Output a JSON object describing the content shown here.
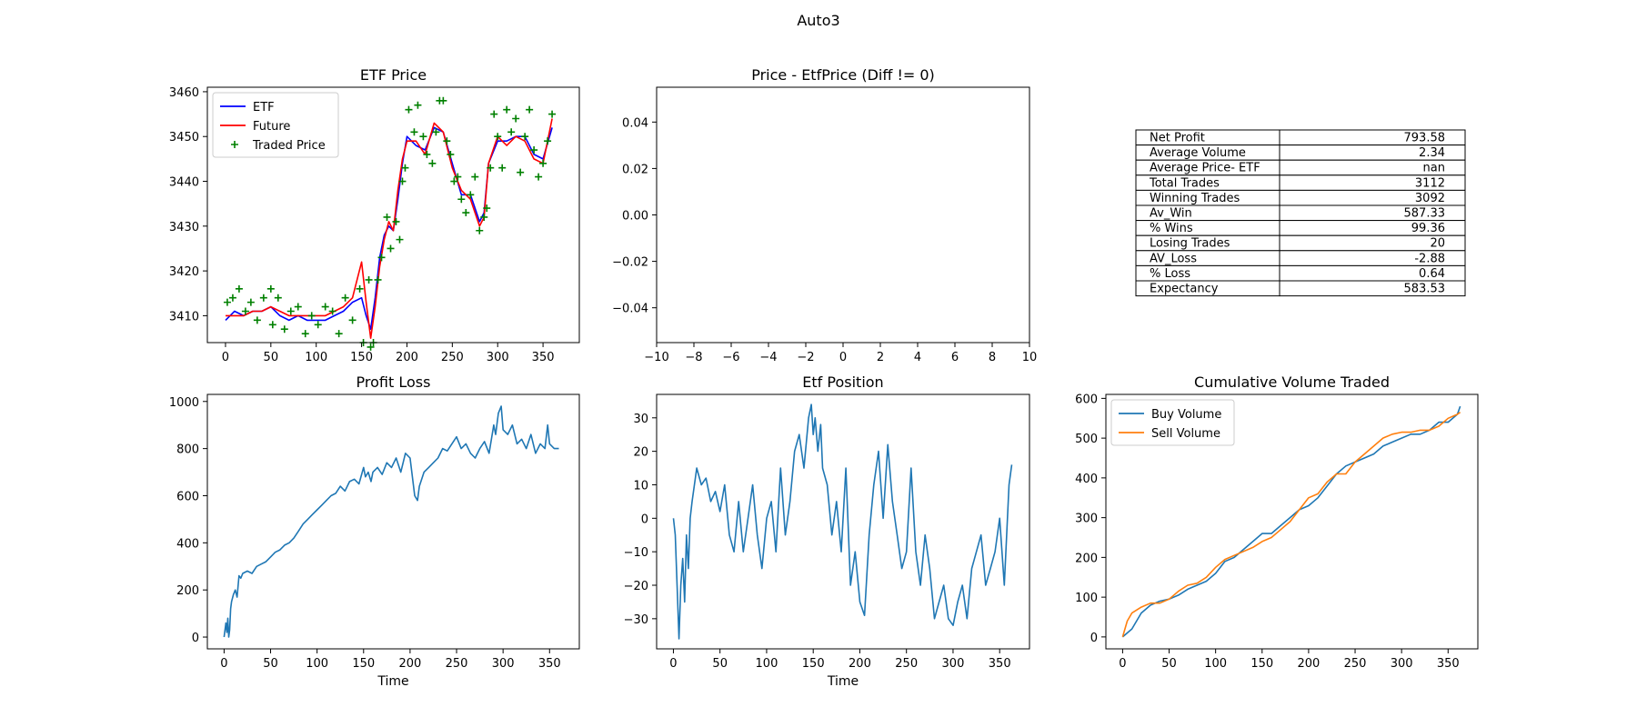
{
  "figure": {
    "suptitle": "Auto3"
  },
  "colors": {
    "etf": "#0000ff",
    "future": "#ff0000",
    "traded": "#008000",
    "buy": "#1f77b4",
    "sell": "#ff7f0e",
    "line": "#1f77b4"
  },
  "chart_data": [
    {
      "id": "etf_price",
      "type": "line",
      "title": "ETF Price",
      "xlabel": "",
      "ylabel": "",
      "xlim": [
        -20,
        390
      ],
      "ylim": [
        3404,
        3461
      ],
      "xticks": [
        0,
        50,
        100,
        150,
        200,
        250,
        300,
        350
      ],
      "yticks": [
        3410,
        3420,
        3430,
        3440,
        3450,
        3460
      ],
      "legend": "top-left",
      "series": [
        {
          "name": "ETF",
          "kind": "line",
          "color": "#0000ff",
          "x": [
            0,
            10,
            20,
            30,
            40,
            50,
            60,
            70,
            80,
            90,
            100,
            110,
            120,
            130,
            140,
            150,
            155,
            160,
            165,
            170,
            175,
            180,
            185,
            190,
            195,
            200,
            210,
            220,
            230,
            240,
            250,
            260,
            270,
            280,
            285,
            290,
            300,
            310,
            320,
            330,
            340,
            350,
            360
          ],
          "y": [
            3409,
            3411,
            3410,
            3411,
            3411,
            3412,
            3410,
            3409,
            3410,
            3409,
            3409,
            3409,
            3410,
            3411,
            3413,
            3414,
            3410,
            3407,
            3414,
            3423,
            3428,
            3430,
            3429,
            3436,
            3444,
            3450,
            3448,
            3447,
            3452,
            3451,
            3444,
            3437,
            3437,
            3431,
            3433,
            3444,
            3449,
            3449,
            3450,
            3450,
            3446,
            3445,
            3452
          ]
        },
        {
          "name": "Future",
          "kind": "line",
          "color": "#ff0000",
          "x": [
            0,
            10,
            20,
            30,
            40,
            50,
            60,
            70,
            80,
            90,
            100,
            110,
            120,
            130,
            140,
            150,
            155,
            160,
            165,
            170,
            175,
            180,
            185,
            190,
            195,
            200,
            210,
            220,
            230,
            240,
            250,
            260,
            270,
            280,
            285,
            290,
            300,
            310,
            320,
            330,
            340,
            350,
            360
          ],
          "y": [
            3410,
            3410,
            3410,
            3411,
            3411,
            3412,
            3411,
            3410,
            3410,
            3410,
            3410,
            3410,
            3411,
            3412,
            3414,
            3422,
            3413,
            3405,
            3412,
            3421,
            3427,
            3431,
            3429,
            3438,
            3445,
            3449,
            3449,
            3446,
            3453,
            3451,
            3443,
            3438,
            3436,
            3430,
            3432,
            3444,
            3450,
            3448,
            3450,
            3449,
            3445,
            3444,
            3454
          ]
        },
        {
          "name": "Traded Price",
          "kind": "scatter",
          "marker": "+",
          "color": "#008000",
          "x": [
            2,
            8,
            15,
            22,
            28,
            35,
            42,
            50,
            52,
            58,
            65,
            72,
            80,
            88,
            95,
            102,
            110,
            118,
            125,
            132,
            140,
            148,
            152,
            158,
            160,
            163,
            168,
            172,
            178,
            182,
            188,
            192,
            195,
            198,
            202,
            208,
            212,
            218,
            222,
            228,
            232,
            236,
            240,
            244,
            248,
            252,
            256,
            260,
            265,
            270,
            275,
            280,
            285,
            288,
            292,
            296,
            300,
            305,
            310,
            315,
            320,
            325,
            330,
            335,
            340,
            345,
            350,
            355,
            360
          ],
          "y": [
            3413,
            3414,
            3416,
            3411,
            3413,
            3409,
            3414,
            3416,
            3408,
            3414,
            3407,
            3411,
            3412,
            3406,
            3410,
            3408,
            3412,
            3411,
            3406,
            3414,
            3409,
            3416,
            3404,
            3418,
            3403,
            3404,
            3418,
            3423,
            3432,
            3425,
            3431,
            3427,
            3440,
            3443,
            3456,
            3451,
            3457,
            3450,
            3446,
            3444,
            3451,
            3458,
            3458,
            3449,
            3446,
            3440,
            3441,
            3436,
            3433,
            3437,
            3441,
            3429,
            3432,
            3434,
            3443,
            3455,
            3450,
            3443,
            3456,
            3451,
            3454,
            3442,
            3450,
            3456,
            3447,
            3441,
            3444,
            3449,
            3455
          ]
        }
      ]
    },
    {
      "id": "price_minus_etf",
      "type": "scatter",
      "title": "Price - EtfPrice (Diff != 0)",
      "xlabel": "",
      "ylabel": "",
      "xlim": [
        -10,
        10
      ],
      "ylim": [
        -0.055,
        0.055
      ],
      "xticks": [
        -10,
        -8,
        -6,
        -4,
        -2,
        0,
        2,
        4,
        6,
        8,
        10
      ],
      "yticks": [
        -0.04,
        -0.02,
        0.0,
        0.02,
        0.04
      ],
      "ytick_labels": [
        "−0.04",
        "−0.02",
        "0.00",
        "0.02",
        "0.04"
      ],
      "xtick_labels": [
        "−10",
        "−8",
        "−6",
        "−4",
        "−2",
        "0",
        "2",
        "4",
        "6",
        "8",
        "10"
      ],
      "series": []
    },
    {
      "id": "stats_table",
      "type": "table",
      "rows": [
        [
          "Net Profit",
          "793.58"
        ],
        [
          "Average Volume",
          "2.34"
        ],
        [
          "Average Price- ETF",
          "nan"
        ],
        [
          "Total Trades",
          "3112"
        ],
        [
          "Winning Trades",
          "3092"
        ],
        [
          "Av_Win",
          "587.33"
        ],
        [
          "% Wins",
          "99.36"
        ],
        [
          "Losing Trades",
          "20"
        ],
        [
          "AV_Loss",
          "-2.88"
        ],
        [
          "% Loss",
          "0.64"
        ],
        [
          "Expectancy",
          "583.53"
        ]
      ]
    },
    {
      "id": "profit_loss",
      "type": "line",
      "title": "Profit Loss",
      "xlabel": "Time",
      "ylabel": "",
      "xlim": [
        -18,
        382
      ],
      "ylim": [
        -50,
        1030
      ],
      "xticks": [
        0,
        50,
        100,
        150,
        200,
        250,
        300,
        350
      ],
      "yticks": [
        0,
        200,
        400,
        600,
        800,
        1000
      ],
      "series": [
        {
          "name": "",
          "color": "#1f77b4",
          "x": [
            0,
            2,
            3,
            4,
            5,
            6,
            7,
            8,
            10,
            12,
            14,
            16,
            18,
            20,
            25,
            30,
            35,
            40,
            45,
            50,
            55,
            60,
            65,
            70,
            75,
            80,
            85,
            90,
            95,
            100,
            105,
            110,
            115,
            120,
            125,
            130,
            135,
            140,
            145,
            150,
            152,
            155,
            158,
            160,
            165,
            170,
            175,
            180,
            185,
            190,
            195,
            200,
            205,
            208,
            210,
            215,
            220,
            225,
            230,
            235,
            240,
            245,
            250,
            255,
            260,
            265,
            270,
            275,
            280,
            285,
            290,
            292,
            295,
            298,
            300,
            305,
            310,
            315,
            320,
            325,
            330,
            335,
            340,
            345,
            348,
            350,
            355,
            360
          ],
          "y": [
            0,
            60,
            20,
            80,
            0,
            30,
            120,
            150,
            180,
            200,
            170,
            260,
            250,
            270,
            280,
            270,
            300,
            310,
            320,
            340,
            360,
            370,
            390,
            400,
            420,
            450,
            480,
            500,
            520,
            540,
            560,
            580,
            600,
            610,
            640,
            620,
            660,
            670,
            650,
            720,
            680,
            700,
            660,
            700,
            720,
            690,
            740,
            720,
            760,
            700,
            780,
            760,
            600,
            580,
            640,
            700,
            720,
            740,
            760,
            800,
            790,
            820,
            850,
            800,
            820,
            780,
            760,
            800,
            830,
            780,
            900,
            860,
            950,
            980,
            880,
            860,
            900,
            820,
            840,
            800,
            860,
            780,
            820,
            800,
            900,
            820,
            800,
            800
          ]
        }
      ]
    },
    {
      "id": "etf_position",
      "type": "line",
      "title": "Etf Position",
      "xlabel": "Time",
      "ylabel": "",
      "xlim": [
        -18,
        382
      ],
      "ylim": [
        -39,
        37
      ],
      "xticks": [
        0,
        50,
        100,
        150,
        200,
        250,
        300,
        350
      ],
      "yticks": [
        -30,
        -20,
        -10,
        0,
        10,
        20,
        30
      ],
      "ytick_labels": [
        "−30",
        "−20",
        "−10",
        "0",
        "10",
        "20",
        "30"
      ],
      "series": [
        {
          "name": "",
          "color": "#1f77b4",
          "x": [
            0,
            2,
            4,
            6,
            8,
            10,
            12,
            14,
            16,
            18,
            20,
            25,
            30,
            35,
            40,
            45,
            50,
            55,
            60,
            65,
            70,
            75,
            80,
            85,
            90,
            95,
            100,
            105,
            110,
            115,
            120,
            125,
            130,
            135,
            140,
            145,
            148,
            150,
            152,
            155,
            158,
            160,
            165,
            170,
            175,
            180,
            185,
            190,
            195,
            200,
            205,
            210,
            215,
            220,
            225,
            230,
            235,
            240,
            245,
            250,
            255,
            260,
            265,
            270,
            275,
            280,
            285,
            290,
            295,
            300,
            305,
            310,
            315,
            320,
            325,
            330,
            335,
            340,
            345,
            350,
            355,
            360,
            363
          ],
          "y": [
            0,
            -5,
            -20,
            -36,
            -20,
            -12,
            -25,
            -5,
            -15,
            0,
            5,
            15,
            10,
            12,
            5,
            8,
            2,
            10,
            -5,
            -10,
            5,
            -10,
            0,
            10,
            -5,
            -15,
            0,
            5,
            -10,
            15,
            -5,
            5,
            20,
            25,
            15,
            30,
            34,
            25,
            30,
            20,
            28,
            15,
            10,
            -5,
            5,
            -10,
            15,
            -20,
            -10,
            -25,
            -29,
            -5,
            10,
            20,
            0,
            22,
            5,
            -5,
            -15,
            -10,
            15,
            -10,
            -20,
            -5,
            -15,
            -30,
            -25,
            -20,
            -30,
            -32,
            -25,
            -20,
            -30,
            -15,
            -10,
            -5,
            -20,
            -15,
            -10,
            0,
            -20,
            10,
            16
          ]
        }
      ]
    },
    {
      "id": "cumulative_volume",
      "type": "line",
      "title": "Cumulative Volume Traded",
      "xlabel": "",
      "ylabel": "",
      "xlim": [
        -18,
        382
      ],
      "ylim": [
        -30,
        610
      ],
      "xticks": [
        0,
        50,
        100,
        150,
        200,
        250,
        300,
        350
      ],
      "yticks": [
        0,
        100,
        200,
        300,
        400,
        500,
        600
      ],
      "legend": "top-left",
      "series": [
        {
          "name": "Buy Volume",
          "color": "#1f77b4",
          "x": [
            0,
            10,
            20,
            30,
            40,
            50,
            60,
            70,
            80,
            90,
            100,
            110,
            120,
            130,
            140,
            150,
            160,
            170,
            180,
            190,
            200,
            210,
            220,
            230,
            240,
            250,
            260,
            270,
            280,
            290,
            300,
            310,
            320,
            330,
            340,
            350,
            360,
            363
          ],
          "y": [
            0,
            20,
            60,
            80,
            90,
            95,
            105,
            120,
            130,
            140,
            160,
            190,
            200,
            220,
            240,
            260,
            260,
            280,
            300,
            320,
            330,
            350,
            380,
            410,
            430,
            440,
            450,
            460,
            480,
            490,
            500,
            510,
            510,
            520,
            540,
            540,
            560,
            580
          ]
        },
        {
          "name": "Sell Volume",
          "color": "#ff7f0e",
          "x": [
            0,
            5,
            10,
            20,
            30,
            40,
            50,
            60,
            70,
            80,
            90,
            100,
            110,
            120,
            130,
            140,
            150,
            160,
            170,
            180,
            190,
            200,
            210,
            220,
            230,
            240,
            250,
            260,
            270,
            280,
            290,
            300,
            310,
            320,
            330,
            340,
            350,
            360,
            363
          ],
          "y": [
            0,
            40,
            60,
            75,
            85,
            85,
            95,
            115,
            130,
            135,
            150,
            175,
            195,
            205,
            215,
            225,
            240,
            250,
            270,
            290,
            320,
            350,
            360,
            390,
            410,
            410,
            440,
            460,
            480,
            500,
            510,
            515,
            515,
            520,
            520,
            530,
            550,
            560,
            565
          ]
        }
      ]
    }
  ]
}
